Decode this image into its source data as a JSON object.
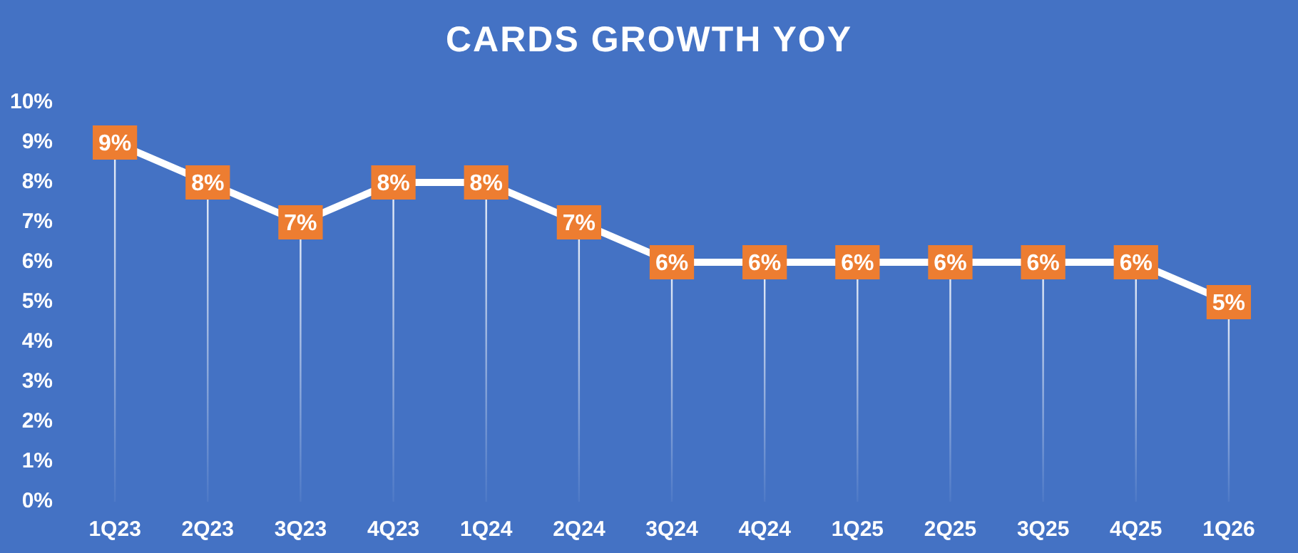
{
  "chart_data": {
    "type": "line",
    "title": "CARDS GROWTH YOY",
    "categories": [
      "1Q23",
      "2Q23",
      "3Q23",
      "4Q23",
      "1Q24",
      "2Q24",
      "3Q24",
      "4Q24",
      "1Q25",
      "2Q25",
      "3Q25",
      "4Q25",
      "1Q26"
    ],
    "series": [
      {
        "color": "#ffffff",
        "values": [
          9,
          8,
          7,
          8,
          8,
          7,
          6,
          6,
          6,
          6,
          6,
          6,
          5
        ],
        "value_labels": [
          "9%",
          "8%",
          "7%",
          "8%",
          "8%",
          "7%",
          "6%",
          "6%",
          "6%",
          "6%",
          "6%",
          "6%",
          "5%"
        ]
      }
    ],
    "ylim": [
      0,
      10
    ],
    "yticks": [
      {
        "value": 0,
        "label": "0%"
      },
      {
        "value": 1,
        "label": "1%"
      },
      {
        "value": 2,
        "label": "2%"
      },
      {
        "value": 3,
        "label": "3%"
      },
      {
        "value": 4,
        "label": "4%"
      },
      {
        "value": 5,
        "label": "5%"
      },
      {
        "value": 6,
        "label": "6%"
      },
      {
        "value": 7,
        "label": "7%"
      },
      {
        "value": 8,
        "label": "8%"
      },
      {
        "value": 9,
        "label": "9%"
      },
      {
        "value": 10,
        "label": "10%"
      }
    ],
    "grid": "x",
    "legend": false,
    "marker": "square",
    "line_style": "solid"
  }
}
